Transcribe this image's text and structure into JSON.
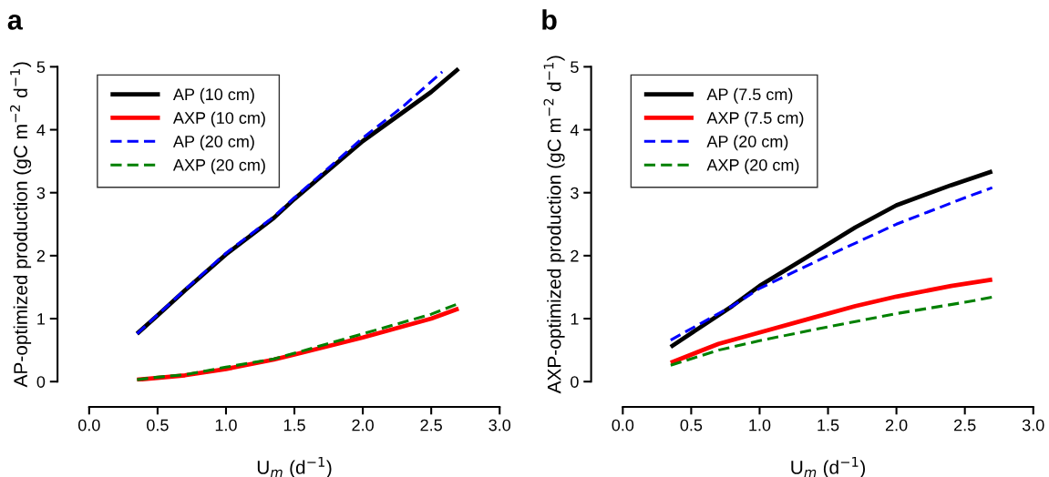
{
  "chart_data": [
    {
      "type": "line",
      "title": "a",
      "xlabel": "U$_{m}$ (d$^{−1}$)",
      "ylabel": "AP-optimized production (gC m$^{−2}$ d$^{−1}$)",
      "xlim": [
        0,
        3
      ],
      "ylim": [
        0,
        5
      ],
      "xticks": [
        {
          "value": 0,
          "label": "0.0"
        },
        0.5,
        {
          "value": 1,
          "label": "1.0"
        },
        1.5,
        {
          "value": 2,
          "label": "2.0"
        },
        2.5,
        {
          "value": 3,
          "label": "3.0"
        }
      ],
      "yticks": [
        0,
        1,
        2,
        3,
        4,
        5
      ],
      "grid": false,
      "legend": "top left",
      "series": [
        {
          "name": "AP (10 cm)",
          "color": "#000000",
          "line_style": "solid",
          "x": [
            0.35,
            0.5,
            0.7,
            1.0,
            1.35,
            1.5,
            2.0,
            2.5,
            2.7
          ],
          "values": [
            0.76,
            1.05,
            1.45,
            2.02,
            2.6,
            2.9,
            3.82,
            4.6,
            4.97
          ]
        },
        {
          "name": "AXP (10 cm)",
          "color": "#ff0000",
          "line_style": "solid",
          "x": [
            0.35,
            0.5,
            0.7,
            1.0,
            1.35,
            1.5,
            2.0,
            2.5,
            2.7
          ],
          "values": [
            0.03,
            0.06,
            0.1,
            0.2,
            0.35,
            0.43,
            0.7,
            1.0,
            1.16
          ]
        },
        {
          "name": "AP (20 cm)",
          "color": "#0000ff",
          "line_style": "dashed",
          "x": [
            0.35,
            0.5,
            0.7,
            1.0,
            1.35,
            1.5,
            2.0,
            2.3,
            2.58
          ],
          "values": [
            0.76,
            1.06,
            1.46,
            2.04,
            2.62,
            2.92,
            3.87,
            4.38,
            4.92
          ]
        },
        {
          "name": "AXP (20 cm)",
          "color": "#008000",
          "line_style": "dashed",
          "x": [
            0.35,
            0.5,
            0.7,
            1.0,
            1.35,
            1.5,
            2.0,
            2.5,
            2.7
          ],
          "values": [
            0.03,
            0.07,
            0.11,
            0.23,
            0.36,
            0.45,
            0.76,
            1.07,
            1.24
          ]
        }
      ]
    },
    {
      "type": "line",
      "title": "b",
      "xlabel": "U$_{m}$ (d$^{−1}$)",
      "ylabel": "AXP-optimized production (gC m$^{−2}$ d$^{−1}$)",
      "xlim": [
        0,
        3
      ],
      "ylim": [
        0,
        5
      ],
      "xticks": [
        {
          "value": 0,
          "label": "0.0"
        },
        0.5,
        {
          "value": 1,
          "label": "1.0"
        },
        1.5,
        {
          "value": 2,
          "label": "2.0"
        },
        2.5,
        {
          "value": 3,
          "label": "3.0"
        }
      ],
      "yticks": [
        0,
        1,
        2,
        3,
        4,
        5
      ],
      "grid": false,
      "legend": "top left",
      "series": [
        {
          "name": "AP (7.5 cm)",
          "color": "#000000",
          "line_style": "solid",
          "x": [
            0.35,
            0.8,
            1.0,
            1.4,
            1.7,
            2.0,
            2.4,
            2.7
          ],
          "values": [
            0.55,
            1.2,
            1.52,
            2.05,
            2.45,
            2.8,
            3.12,
            3.34
          ]
        },
        {
          "name": "AXP (7.5 cm)",
          "color": "#ff0000",
          "line_style": "solid",
          "x": [
            0.35,
            0.7,
            1.0,
            1.4,
            1.7,
            2.0,
            2.4,
            2.7
          ],
          "values": [
            0.3,
            0.6,
            0.78,
            1.02,
            1.2,
            1.35,
            1.52,
            1.62
          ]
        },
        {
          "name": "AP (20 cm)",
          "color": "#0000ff",
          "line_style": "dashed",
          "x": [
            0.35,
            0.8,
            1.0,
            1.5,
            2.0,
            2.5,
            2.7
          ],
          "values": [
            0.66,
            1.2,
            1.48,
            2.0,
            2.5,
            2.92,
            3.08
          ]
        },
        {
          "name": "AXP (20 cm)",
          "color": "#008000",
          "line_style": "dashed",
          "x": [
            0.35,
            0.7,
            1.0,
            1.5,
            2.0,
            2.5,
            2.7
          ],
          "values": [
            0.26,
            0.5,
            0.65,
            0.87,
            1.08,
            1.26,
            1.34
          ]
        }
      ]
    }
  ]
}
